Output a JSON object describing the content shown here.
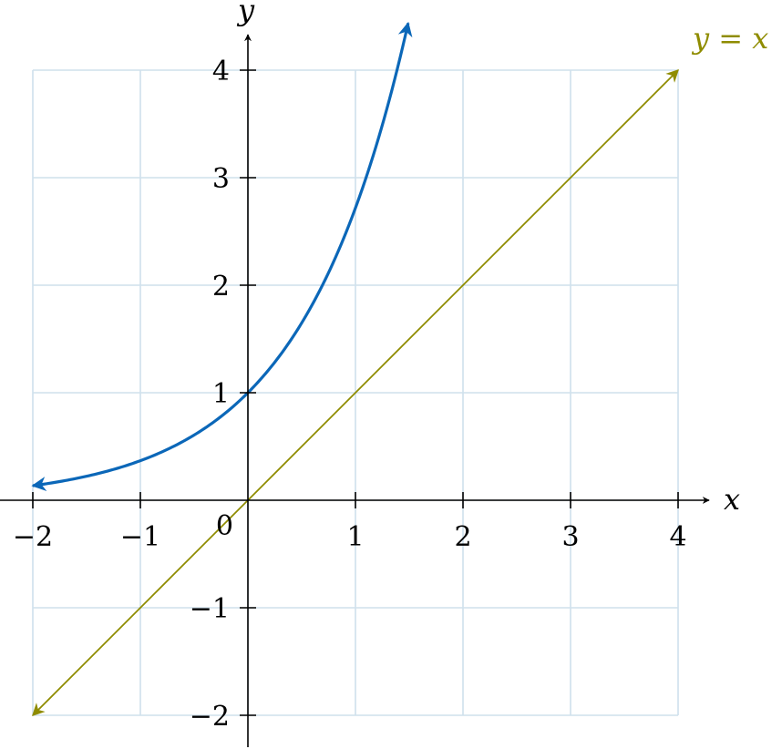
{
  "chart_data": {
    "type": "line",
    "xlabel": "x",
    "ylabel": "y",
    "xlim": [
      -2,
      4
    ],
    "ylim": [
      -2,
      4
    ],
    "origin_label": "0",
    "grid": true,
    "x_ticks": [
      {
        "value": -2,
        "label": "−2"
      },
      {
        "value": -1,
        "label": "−1"
      },
      {
        "value": 1,
        "label": "1"
      },
      {
        "value": 2,
        "label": "2"
      },
      {
        "value": 3,
        "label": "3"
      },
      {
        "value": 4,
        "label": "4"
      }
    ],
    "y_ticks": [
      {
        "value": -2,
        "label": "−2"
      },
      {
        "value": -1,
        "label": "−1"
      },
      {
        "value": 1,
        "label": "1"
      },
      {
        "value": 2,
        "label": "2"
      },
      {
        "value": 3,
        "label": "3"
      },
      {
        "value": 4,
        "label": "4"
      }
    ],
    "series": [
      {
        "name": "",
        "color": "#0b67b8",
        "function": "exp",
        "x_range": [
          -2,
          1.49
        ],
        "points": [
          [
            -2,
            0.14
          ],
          [
            -1,
            0.37
          ],
          [
            0,
            1
          ],
          [
            1,
            2.72
          ],
          [
            1.49,
            4.44
          ]
        ],
        "arrows": "both"
      },
      {
        "name": "y = x",
        "color": "#8f8c00",
        "function": "identity",
        "x_range": [
          -2,
          4
        ],
        "points": [
          [
            -2,
            -2
          ],
          [
            0,
            0
          ],
          [
            2,
            2
          ],
          [
            4,
            4
          ]
        ],
        "arrows": "both"
      }
    ]
  }
}
